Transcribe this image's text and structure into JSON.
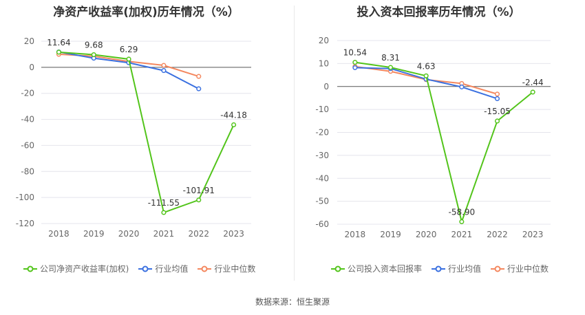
{
  "source_text": "数据来源：恒生聚源",
  "chart_data": [
    {
      "type": "line",
      "title": "净资产收益率(加权)历年情况（%）",
      "categories": [
        "2018",
        "2019",
        "2020",
        "2021",
        "2022",
        "2023"
      ],
      "ylim": [
        -120,
        20
      ],
      "yticks": [
        20,
        0,
        -20,
        -40,
        -60,
        -80,
        -100,
        -120
      ],
      "grid": true,
      "legend_position": "bottom-left",
      "series": [
        {
          "name": "公司净资产收益率(加权)",
          "color": "#52c41a",
          "values": [
            11.64,
            9.68,
            6.29,
            -111.55,
            -101.91,
            -44.18
          ],
          "labels": [
            "11.64",
            "9.68",
            "6.29",
            "-111.55",
            "-101.91",
            "-44.18"
          ]
        },
        {
          "name": "行业均值",
          "color": "#3a70e0",
          "values": [
            11.8,
            7.0,
            3.5,
            -2.5,
            -16.5,
            null
          ]
        },
        {
          "name": "行业中位数",
          "color": "#f4875e",
          "values": [
            10.0,
            8.5,
            4.5,
            1.5,
            -7.0,
            null
          ]
        }
      ]
    },
    {
      "type": "line",
      "title": "投入资本回报率历年情况（%）",
      "categories": [
        "2018",
        "2019",
        "2020",
        "2021",
        "2022",
        "2023"
      ],
      "ylim": [
        -60,
        20
      ],
      "yticks": [
        20,
        10,
        0,
        -10,
        -20,
        -30,
        -40,
        -50,
        -60
      ],
      "grid": true,
      "legend_position": "bottom-left",
      "series": [
        {
          "name": "公司投入资本回报率",
          "color": "#52c41a",
          "values": [
            10.54,
            8.31,
            4.63,
            -58.9,
            -15.05,
            -2.44
          ],
          "labels": [
            "10.54",
            "8.31",
            "4.63",
            "-58.90",
            "-15.05",
            "-2.44"
          ]
        },
        {
          "name": "行业均值",
          "color": "#3a70e0",
          "values": [
            8.2,
            7.8,
            3.2,
            -0.2,
            -5.3,
            null
          ]
        },
        {
          "name": "行业中位数",
          "color": "#f4875e",
          "values": [
            8.7,
            6.6,
            3.0,
            1.3,
            -3.3,
            null
          ]
        }
      ]
    }
  ]
}
